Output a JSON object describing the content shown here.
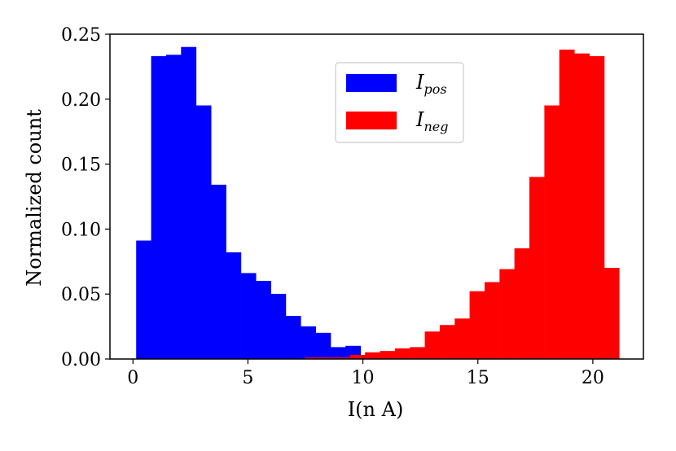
{
  "chart_data": {
    "type": "bar",
    "xlabel": "I(n A)",
    "ylabel": "Normalized count",
    "xlim": [
      -1.0,
      22.2
    ],
    "ylim": [
      0.0,
      0.25
    ],
    "xticks": [
      0,
      5,
      10,
      15,
      20
    ],
    "xtick_labels": [
      "0",
      "5",
      "10",
      "15",
      "20"
    ],
    "yticks": [
      0.0,
      0.05,
      0.1,
      0.15,
      0.2,
      0.25
    ],
    "ytick_labels": [
      "0.00",
      "0.05",
      "0.10",
      "0.15",
      "0.20",
      "0.25"
    ],
    "grid": false,
    "legend_position": "top-center",
    "series": [
      {
        "name": "I_pos",
        "label_main": "I",
        "label_sub": "pos",
        "color": "#0000ff",
        "bin_edges": [
          0.15,
          0.8,
          1.45,
          2.1,
          2.75,
          3.4,
          4.05,
          4.7,
          5.35,
          6.0,
          6.65,
          7.3,
          7.95,
          8.6,
          9.25,
          9.9,
          10.55
        ],
        "values": [
          0.091,
          0.233,
          0.234,
          0.24,
          0.195,
          0.134,
          0.082,
          0.066,
          0.06,
          0.05,
          0.033,
          0.025,
          0.02,
          0.009,
          0.01,
          0.003
        ]
      },
      {
        "name": "I_neg",
        "label_main": "I",
        "label_sub": "neg",
        "color": "#ff0000",
        "bin_edges": [
          7.5,
          8.15,
          8.8,
          9.45,
          10.1,
          10.75,
          11.4,
          12.05,
          12.7,
          13.35,
          14.0,
          14.65,
          15.3,
          15.95,
          16.6,
          17.25,
          17.9,
          18.55,
          19.2,
          19.85,
          20.5,
          21.15
        ],
        "values": [
          0.001,
          0.001,
          0.001,
          0.003,
          0.005,
          0.006,
          0.008,
          0.009,
          0.021,
          0.026,
          0.031,
          0.052,
          0.059,
          0.069,
          0.085,
          0.14,
          0.195,
          0.238,
          0.235,
          0.233,
          0.07
        ]
      }
    ]
  }
}
